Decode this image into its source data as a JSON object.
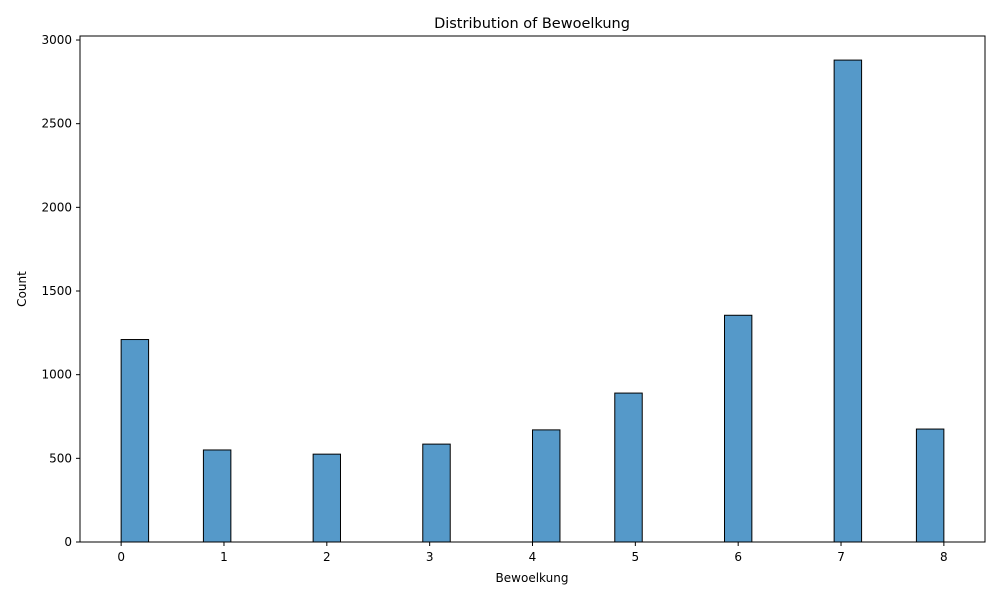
{
  "chart_data": {
    "type": "bar",
    "title": "Distribution of Bewoelkung",
    "xlabel": "Bewoelkung",
    "ylabel": "Count",
    "xlim": [
      -0.4,
      8.4
    ],
    "ylim": [
      0,
      3024
    ],
    "x_ticks": [
      0,
      1,
      2,
      3,
      4,
      5,
      6,
      7,
      8
    ],
    "y_ticks": [
      0,
      500,
      1000,
      1500,
      2000,
      2500,
      3000
    ],
    "grid": false,
    "bar_color": "#5599c9",
    "bins": [
      {
        "x0": 0.0,
        "x1": 0.267,
        "count": 1210
      },
      {
        "x0": 0.8,
        "x1": 1.067,
        "count": 550
      },
      {
        "x0": 1.867,
        "x1": 2.133,
        "count": 525
      },
      {
        "x0": 2.933,
        "x1": 3.2,
        "count": 585
      },
      {
        "x0": 4.0,
        "x1": 4.267,
        "count": 670
      },
      {
        "x0": 4.8,
        "x1": 5.067,
        "count": 890
      },
      {
        "x0": 5.867,
        "x1": 6.133,
        "count": 1355
      },
      {
        "x0": 6.933,
        "x1": 7.2,
        "count": 2880
      },
      {
        "x0": 7.733,
        "x1": 8.0,
        "count": 675
      }
    ]
  }
}
